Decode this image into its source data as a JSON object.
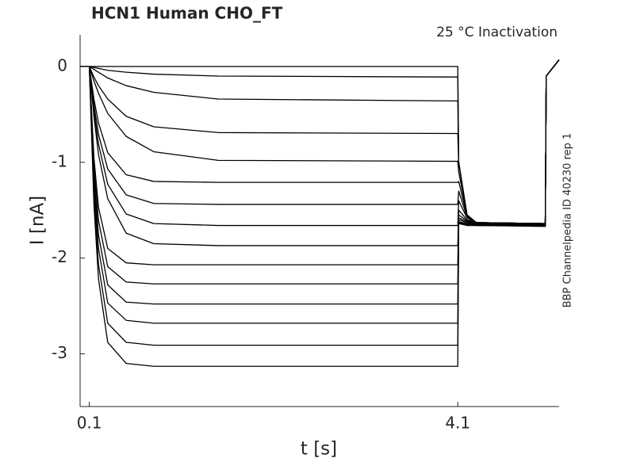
{
  "chart_data": {
    "type": "line",
    "title": "HCN1  Human  CHO_FT",
    "annotation": "25 °C  Inactivation",
    "side_note": "BBP Channelpedia ID 40230 rep 1",
    "x_label": "t [s]",
    "y_label": "I [nA]",
    "color": "#000000",
    "x": [
      0,
      0.1,
      0.15,
      0.2,
      0.3,
      0.5,
      0.8,
      1.5,
      4.1,
      4.11,
      4.2,
      4.3,
      5.05,
      5.06,
      5.2
    ],
    "series": [
      {
        "values": [
          0,
          0,
          0,
          0,
          0,
          0,
          0,
          0,
          0,
          -1.0,
          -1.55,
          -1.63,
          -1.64,
          -0.1,
          0.07
        ]
      },
      {
        "values": [
          0,
          0,
          -0.01,
          -0.02,
          -0.04,
          -0.06,
          -0.08,
          -0.1,
          -0.11,
          -1.0,
          -1.55,
          -1.63,
          -1.64,
          -0.1,
          0.07
        ]
      },
      {
        "values": [
          0,
          0,
          -0.03,
          -0.06,
          -0.12,
          -0.2,
          -0.27,
          -0.34,
          -0.36,
          -1.0,
          -1.55,
          -1.63,
          -1.64,
          -0.1,
          0.07
        ]
      },
      {
        "values": [
          0,
          0,
          -0.11,
          -0.2,
          -0.34,
          -0.52,
          -0.63,
          -0.69,
          -0.7,
          -1.0,
          -1.55,
          -1.63,
          -1.64,
          -0.1,
          0.07
        ]
      },
      {
        "values": [
          0,
          0,
          -0.15,
          -0.28,
          -0.49,
          -0.73,
          -0.89,
          -0.98,
          -0.99,
          -1.1,
          -1.55,
          -1.63,
          -1.64,
          -0.1,
          0.07
        ]
      },
      {
        "values": [
          0,
          0,
          -0.34,
          -0.59,
          -0.9,
          -1.13,
          -1.2,
          -1.21,
          -1.21,
          -1.2,
          -1.56,
          -1.63,
          -1.64,
          -0.1,
          0.07
        ]
      },
      {
        "values": [
          0,
          0,
          -0.4,
          -0.71,
          -1.07,
          -1.34,
          -1.43,
          -1.44,
          -1.44,
          -1.3,
          -1.57,
          -1.63,
          -1.64,
          -0.1,
          0.07
        ]
      },
      {
        "values": [
          0,
          0,
          -0.46,
          -0.81,
          -1.23,
          -1.54,
          -1.64,
          -1.66,
          -1.66,
          -1.4,
          -1.58,
          -1.64,
          -1.65,
          -0.1,
          0.07
        ]
      },
      {
        "values": [
          0,
          0,
          -0.52,
          -0.92,
          -1.38,
          -1.74,
          -1.85,
          -1.87,
          -1.87,
          -1.5,
          -1.6,
          -1.64,
          -1.65,
          -0.1,
          0.07
        ]
      },
      {
        "values": [
          0,
          0,
          -0.95,
          -1.47,
          -1.9,
          -2.05,
          -2.07,
          -2.07,
          -2.07,
          -1.55,
          -1.61,
          -1.64,
          -1.65,
          -0.1,
          0.07
        ]
      },
      {
        "values": [
          0,
          0,
          -1.04,
          -1.61,
          -2.09,
          -2.25,
          -2.27,
          -2.27,
          -2.27,
          -1.58,
          -1.62,
          -1.64,
          -1.65,
          -0.1,
          0.07
        ]
      },
      {
        "values": [
          0,
          0,
          -1.14,
          -1.76,
          -2.28,
          -2.46,
          -2.48,
          -2.48,
          -2.48,
          -1.6,
          -1.63,
          -1.65,
          -1.66,
          -0.1,
          0.07
        ]
      },
      {
        "values": [
          0,
          0,
          -1.23,
          -1.9,
          -2.47,
          -2.65,
          -2.68,
          -2.68,
          -2.68,
          -1.62,
          -1.64,
          -1.65,
          -1.66,
          -0.1,
          0.07
        ]
      },
      {
        "values": [
          0,
          0,
          -1.34,
          -2.07,
          -2.68,
          -2.88,
          -2.91,
          -2.91,
          -2.91,
          -1.63,
          -1.65,
          -1.66,
          -1.66,
          -0.1,
          0.07
        ]
      },
      {
        "values": [
          0,
          0,
          -1.44,
          -2.22,
          -2.88,
          -3.1,
          -3.13,
          -3.13,
          -3.13,
          -1.64,
          -1.66,
          -1.66,
          -1.67,
          -0.1,
          0.07
        ]
      }
    ],
    "xlim": [
      0,
      5.2
    ],
    "xticks": [
      0.1,
      4.1
    ],
    "ylim": [
      -3.55,
      0.33
    ],
    "yticks": [
      -3,
      -2,
      -1,
      0
    ]
  }
}
